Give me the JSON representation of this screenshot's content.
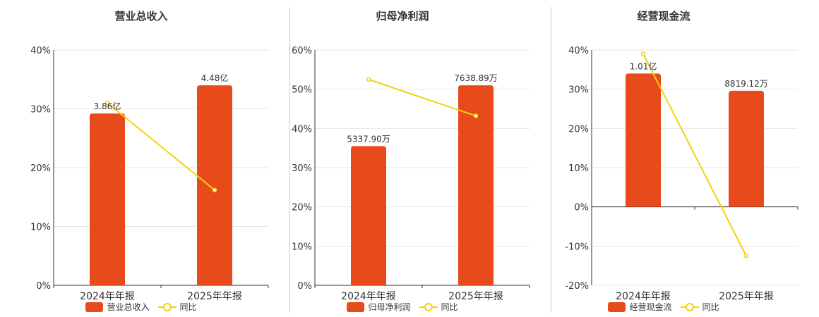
{
  "colors": {
    "bar": "#E84B1B",
    "line": "#F5D10C",
    "axis": "#333333",
    "grid": "#e6e6e6",
    "text": "#333333"
  },
  "chart_data": [
    {
      "type": "bar",
      "title": "营业总收入",
      "categories": [
        "2024年年报",
        "2025年年报"
      ],
      "yticks": [
        "0%",
        "10%",
        "20%",
        "30%",
        "40%"
      ],
      "ylim": [
        0,
        40
      ],
      "series": [
        {
          "name": "营业总收入",
          "kind": "bar",
          "values": [
            29.2,
            34.0
          ],
          "labels": [
            "3.86亿",
            "4.48亿"
          ]
        },
        {
          "name": "同比",
          "kind": "line",
          "values": [
            31.0,
            16.2
          ]
        }
      ],
      "legend": "bottom"
    },
    {
      "type": "bar",
      "title": "归母净利润",
      "categories": [
        "2024年年报",
        "2025年年报"
      ],
      "yticks": [
        "0%",
        "10%",
        "20%",
        "30%",
        "40%",
        "50%",
        "60%"
      ],
      "ylim": [
        0,
        60
      ],
      "series": [
        {
          "name": "归母净利润",
          "kind": "bar",
          "values": [
            35.5,
            51.0
          ],
          "labels": [
            "5337.90万",
            "7638.89万"
          ]
        },
        {
          "name": "同比",
          "kind": "line",
          "values": [
            52.5,
            43.2
          ]
        }
      ],
      "legend": "bottom"
    },
    {
      "type": "bar",
      "title": "经营现金流",
      "categories": [
        "2024年年报",
        "2025年年报"
      ],
      "yticks": [
        "-20%",
        "-10%",
        "0%",
        "10%",
        "20%",
        "30%",
        "40%"
      ],
      "ylim": [
        -20,
        40
      ],
      "series": [
        {
          "name": "经营现金流",
          "kind": "bar",
          "values": [
            34.0,
            29.6
          ],
          "labels": [
            "1.01亿",
            "8819.12万"
          ]
        },
        {
          "name": "同比",
          "kind": "line",
          "values": [
            39.0,
            -12.5
          ]
        }
      ],
      "legend": "bottom"
    }
  ]
}
